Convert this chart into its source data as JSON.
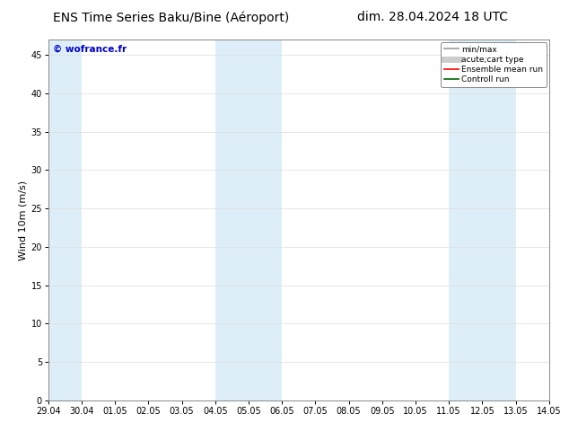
{
  "title_left": "ENS Time Series Baku/Bine (Aéroport)",
  "title_right": "dim. 28.04.2024 18 UTC",
  "ylabel": "Wind 10m (m/s)",
  "watermark": "© wofrance.fr",
  "ylim": [
    0,
    47
  ],
  "yticks": [
    0,
    5,
    10,
    15,
    20,
    25,
    30,
    35,
    40,
    45
  ],
  "xtick_labels": [
    "29.04",
    "30.04",
    "01.05",
    "02.05",
    "03.05",
    "04.05",
    "05.05",
    "06.05",
    "07.05",
    "08.05",
    "09.05",
    "10.05",
    "11.05",
    "12.05",
    "13.05",
    "14.05"
  ],
  "shaded_regions": [
    {
      "xstart": 0,
      "xend": 1,
      "color": "#ddeef8"
    },
    {
      "xstart": 5,
      "xend": 7,
      "color": "#ddeef8"
    },
    {
      "xstart": 12,
      "xend": 14,
      "color": "#ddeef8"
    }
  ],
  "legend_items": [
    {
      "label": "min/max",
      "color": "#999999",
      "lw": 1.2,
      "ls": "-"
    },
    {
      "label": "acute;cart type",
      "color": "#cccccc",
      "lw": 5,
      "ls": "-"
    },
    {
      "label": "Ensemble mean run",
      "color": "#ff0000",
      "lw": 1.2,
      "ls": "-"
    },
    {
      "label": "Controll run",
      "color": "#006600",
      "lw": 1.2,
      "ls": "-"
    }
  ],
  "background_color": "#ffffff",
  "plot_bg_color": "#ffffff",
  "title_fontsize": 10,
  "tick_fontsize": 7,
  "ylabel_fontsize": 8,
  "watermark_color": "#0000cc",
  "grid_color": "#dddddd",
  "spine_color": "#888888"
}
